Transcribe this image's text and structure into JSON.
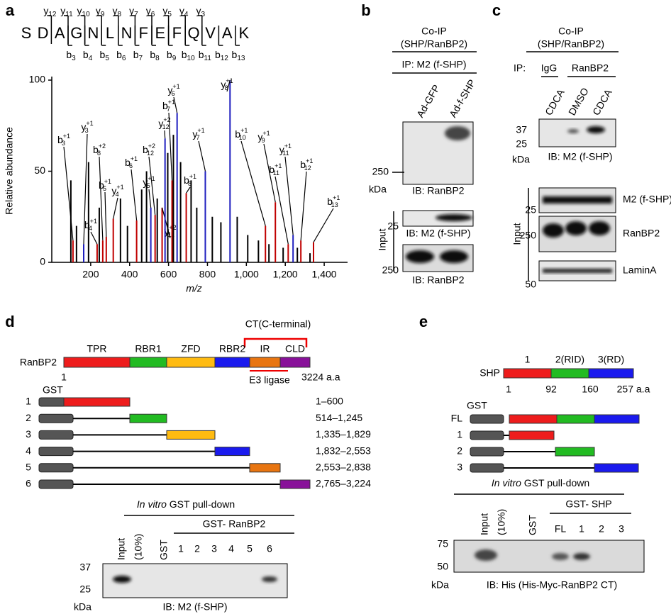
{
  "panel_a": {
    "letter": "a",
    "sequence": [
      "S",
      "D",
      "A",
      "G",
      "N",
      "L",
      "N",
      "F",
      "E",
      "F",
      "Q",
      "V",
      "A",
      "K"
    ],
    "y_ion": "y",
    "y_ion_indices": [
      "12",
      "11",
      "10",
      "9",
      "8",
      "7",
      "6",
      "5",
      "4",
      "3"
    ],
    "b_ion": "b",
    "b_ion_indices": [
      "3",
      "4",
      "5",
      "6",
      "7",
      "8",
      "9",
      "10",
      "11",
      "12",
      "13"
    ],
    "chart_data": {
      "type": "spectrum",
      "ylabel": "Relative abundance",
      "xlabel": "m/z",
      "xlim": [
        0,
        1520
      ],
      "ylim": [
        0,
        100
      ],
      "xticks": [
        200,
        400,
        600,
        800,
        {
          "value": 1000,
          "label": "1,000"
        },
        {
          "value": 1200,
          "label": "1,200"
        },
        {
          "value": 1400,
          "label": "1,400"
        }
      ],
      "yticks": [
        0,
        50,
        100
      ],
      "peaks": [
        {
          "ion": "b",
          "index": "3",
          "charge": "+1",
          "mz": 109,
          "abundance": 12,
          "color": "#c00000"
        },
        {
          "ion": "y",
          "index": "3",
          "charge": "+1",
          "mz": 164,
          "abundance": 10,
          "color": "#1f1fbf"
        },
        {
          "ion": "b",
          "index": "4",
          "charge": "+1",
          "mz": 233,
          "abundance": 10,
          "color": "#c00000"
        },
        {
          "ion": "b",
          "index": "8",
          "charge": "+2",
          "mz": 262,
          "abundance": 12,
          "color": "#c00000"
        },
        {
          "ion": "b",
          "index": "5",
          "charge": "+1",
          "mz": 280,
          "abundance": 14,
          "color": "#c00000"
        },
        {
          "ion": "y",
          "index": "4",
          "charge": "+1",
          "mz": 316,
          "abundance": 24,
          "color": "#c00000"
        },
        {
          "ion": "b",
          "index": "6",
          "charge": "+1",
          "mz": 436,
          "abundance": 23,
          "color": "#c00000"
        },
        {
          "ion": "y",
          "index": "5",
          "charge": "+1",
          "mz": 509,
          "abundance": 30,
          "color": "#1f1fbf"
        },
        {
          "ion": "b",
          "index": "12",
          "charge": "+2",
          "mz": 531,
          "abundance": 26,
          "color": "#c00000"
        },
        {
          "ion": "y",
          "index": "11",
          "charge": "+2",
          "mz": 567,
          "abundance": 30,
          "color": "#c00000"
        },
        {
          "ion": "y",
          "index": "12",
          "charge": "+2",
          "mz": 582,
          "abundance": 68,
          "color": "#1f1fbf"
        },
        {
          "ion": "b",
          "index": "7",
          "charge": "+1",
          "mz": 618,
          "abundance": 45,
          "color": "#c00000"
        },
        {
          "ion": "y",
          "index": "6",
          "charge": "+1",
          "mz": 644,
          "abundance": 82,
          "color": "#1f1fbf"
        },
        {
          "ion": "b",
          "index": "8",
          "charge": "+1",
          "mz": 691,
          "abundance": 38,
          "color": "#c00000"
        },
        {
          "ion": "y",
          "index": "7",
          "charge": "+1",
          "mz": 789,
          "abundance": 50,
          "color": "#1f1fbf"
        },
        {
          "ion": "y",
          "index": "8",
          "charge": "+1",
          "mz": 916,
          "abundance": 100,
          "color": "#1f1fbf"
        },
        {
          "ion": "b",
          "index": "10",
          "charge": "+1",
          "mz": 1098,
          "abundance": 20,
          "color": "#c00000"
        },
        {
          "ion": "y",
          "index": "9",
          "charge": "+1",
          "mz": 1149,
          "abundance": 33,
          "color": "#c00000"
        },
        {
          "ion": "b",
          "index": "11",
          "charge": "+1",
          "mz": 1215,
          "abundance": 10,
          "color": "#c00000"
        },
        {
          "ion": "y",
          "index": "11",
          "charge": "+1",
          "mz": 1240,
          "abundance": 15,
          "color": "#1f1fbf"
        },
        {
          "ion": "b",
          "index": "12",
          "charge": "+1",
          "mz": 1280,
          "abundance": 12,
          "color": "#c00000"
        },
        {
          "ion": "b",
          "index": "13",
          "charge": "+1",
          "mz": 1345,
          "abundance": 11,
          "color": "#c00000"
        },
        {
          "mz": 98,
          "abundance": 45,
          "color": "#000000"
        },
        {
          "mz": 127,
          "abundance": 20,
          "color": "#000000"
        },
        {
          "mz": 189,
          "abundance": 55,
          "color": "#000000"
        },
        {
          "mz": 244,
          "abundance": 30,
          "color": "#000000"
        },
        {
          "mz": 353,
          "abundance": 35,
          "color": "#000000"
        },
        {
          "mz": 389,
          "abundance": 20,
          "color": "#000000"
        },
        {
          "mz": 462,
          "abundance": 40,
          "color": "#000000"
        },
        {
          "mz": 487,
          "abundance": 50,
          "color": "#000000"
        },
        {
          "mz": 542,
          "abundance": 35,
          "color": "#000000"
        },
        {
          "mz": 596,
          "abundance": 60,
          "color": "#000000"
        },
        {
          "mz": 625,
          "abundance": 70,
          "color": "#000000"
        },
        {
          "mz": 662,
          "abundance": 55,
          "color": "#000000"
        },
        {
          "mz": 716,
          "abundance": 45,
          "color": "#000000"
        },
        {
          "mz": 745,
          "abundance": 30,
          "color": "#000000"
        },
        {
          "mz": 825,
          "abundance": 25,
          "color": "#000000"
        },
        {
          "mz": 869,
          "abundance": 22,
          "color": "#000000"
        },
        {
          "mz": 953,
          "abundance": 25,
          "color": "#000000"
        },
        {
          "mz": 1007,
          "abundance": 15,
          "color": "#000000"
        },
        {
          "mz": 1062,
          "abundance": 12,
          "color": "#000000"
        },
        {
          "mz": 1116,
          "abundance": 10,
          "color": "#000000"
        },
        {
          "mz": 1189,
          "abundance": 8,
          "color": "#000000"
        },
        {
          "mz": 1262,
          "abundance": 8,
          "color": "#000000"
        },
        {
          "mz": 1327,
          "abundance": 5,
          "color": "#000000"
        }
      ]
    }
  },
  "panel_b": {
    "letter": "b",
    "coip": "Co-IP",
    "pair": "(SHP/RanBP2)",
    "ip": "IP: M2 (f-SHP)",
    "lanes": [
      "Ad-GFP",
      "Ad-f-SHP"
    ],
    "marker1": 250,
    "kda": "kDa",
    "ib1": "IB: RanBP2",
    "input": "Input",
    "marker2": 25,
    "ib2": "IB: M2 (f-SHP)",
    "marker3": 250,
    "ib3": "IB: RanBP2"
  },
  "panel_c": {
    "letter": "c",
    "coip": "Co-IP",
    "pair": "(SHP/RanBP2)",
    "ip": "IP:",
    "igg": "IgG",
    "ranbp2": "RanBP2",
    "lanes": [
      "CDCA",
      "DMSO",
      "CDCA"
    ],
    "marker_top": 37,
    "marker_bottom": 25,
    "kda": "kDa",
    "ib": "IB: M2 (f-SHP)",
    "input": "Input",
    "input_rows": [
      {
        "marker": 25,
        "label": "M2 (f-SHP)"
      },
      {
        "marker": 250,
        "label": "RanBP2"
      },
      {
        "marker": 50,
        "label": "LaminA"
      }
    ]
  },
  "panel_d": {
    "letter": "d",
    "ct": "CT(C-terminal)",
    "protein": "RanBP2",
    "domains": [
      "TPR",
      "RBR1",
      "ZFD",
      "RBR2",
      "IR",
      "CLD"
    ],
    "start": "1",
    "end": "3224 a.a",
    "e3": "E3 ligase",
    "gst": "GST",
    "constructs": [
      {
        "n": "1",
        "range": "1–600"
      },
      {
        "n": "2",
        "range": "514–1,245"
      },
      {
        "n": "3",
        "range": "1,335–1,829"
      },
      {
        "n": "4",
        "range": "1,832–2,553"
      },
      {
        "n": "5",
        "range": "2,553–2,838"
      },
      {
        "n": "6",
        "range": "2,765–3,224"
      }
    ],
    "pulldown_italic": "In vitro",
    "pulldown": " GST pull-down",
    "input": "Input",
    "input_pct": "(10%)",
    "gst_lane": "GST",
    "gst_fusion": "GST- RanBP2",
    "lanes": [
      "1",
      "2",
      "3",
      "4",
      "5",
      "6"
    ],
    "marker_top": 37,
    "marker_bottom": 25,
    "kda": "kDa",
    "ib": "IB: M2 (f-SHP)"
  },
  "panel_e": {
    "letter": "e",
    "protein": "SHP",
    "domains": [
      "1",
      "2(RID)",
      "3(RD)"
    ],
    "positions": [
      "1",
      "92",
      "160",
      "257 a.a"
    ],
    "gst": "GST",
    "constructs": [
      "FL",
      "1",
      "2",
      "3"
    ],
    "pulldown_italic": "In vitro",
    "pulldown": " GST pull-down",
    "input": "Input",
    "input_pct": "(10%)",
    "gst_lane": "GST",
    "gst_fusion": "GST- SHP",
    "lanes": [
      "FL",
      "1",
      "2",
      "3"
    ],
    "marker_top": 75,
    "marker_bottom": 50,
    "kda": "kDa",
    "ib": "IB: His (His-Myc-RanBP2 CT)"
  }
}
